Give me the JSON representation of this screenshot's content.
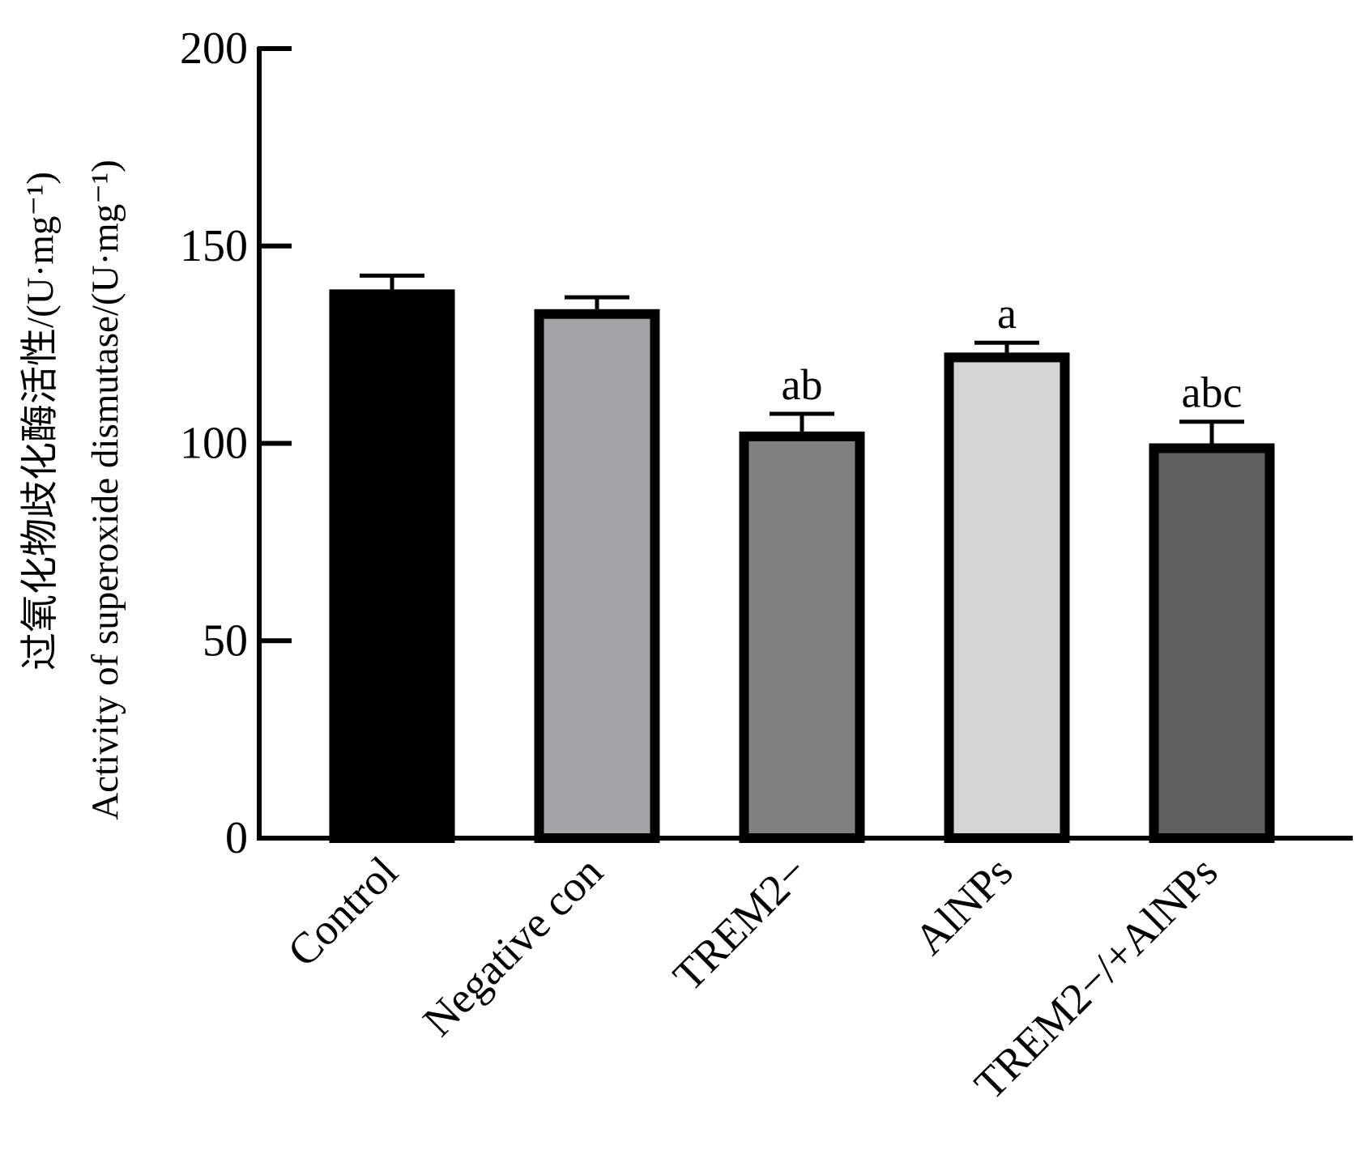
{
  "chart_data": {
    "type": "bar",
    "title": "",
    "xlabel": "",
    "ylabel_lines": [
      "过氧化物歧化酶活性/(U·mg⁻¹)",
      "Activity of superoxide dismutase/(U·mg⁻¹)"
    ],
    "categories": [
      "Control",
      "Negative con",
      "TREM2−",
      "AlNPs",
      "TREM2−/+AlNPs"
    ],
    "values": [
      139,
      134,
      103,
      123,
      100
    ],
    "errors": [
      3.5,
      3.0,
      4.5,
      2.5,
      5.5
    ],
    "significance": [
      "",
      "",
      "ab",
      "a",
      "abc"
    ],
    "bar_colors": [
      "#000000",
      "#a3a3a6",
      "#808080",
      "#d4d4d4",
      "#5f5f5f"
    ],
    "ylim": [
      0,
      200
    ],
    "yticks": [
      0,
      50,
      100,
      150,
      200
    ],
    "grid": false,
    "legend": false
  }
}
